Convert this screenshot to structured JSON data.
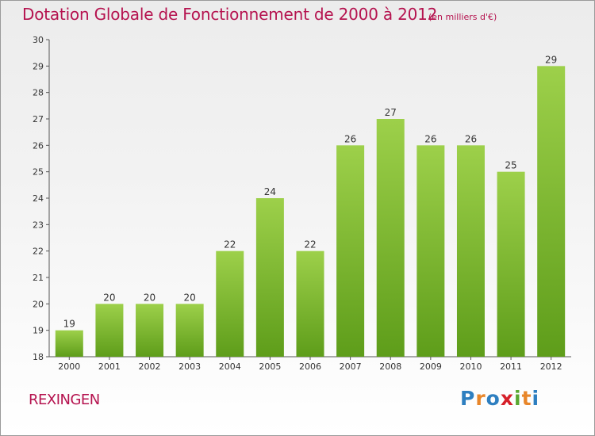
{
  "title": "Dotation Globale de Fonctionnement de 2000 à 2012",
  "subtitle": "(en milliers d'€)",
  "commune": "REXINGEN",
  "logo": {
    "letters": [
      "P",
      "r",
      "o",
      "x",
      "i",
      "t",
      "i"
    ],
    "colors": [
      "#2e7fc0",
      "#e8862a",
      "#2e7fc0",
      "#d6202a",
      "#5aa832",
      "#e8862a",
      "#2e7fc0"
    ]
  },
  "colors": {
    "title": "#b5134f",
    "bar_light": "#9dd04a",
    "bar_dark": "#5e9d1a"
  },
  "chart_data": {
    "type": "bar",
    "title": "Dotation Globale de Fonctionnement de 2000 à 2012",
    "subtitle": "(en milliers d'€)",
    "categories": [
      "2000",
      "2001",
      "2002",
      "2003",
      "2004",
      "2005",
      "2006",
      "2007",
      "2008",
      "2009",
      "2010",
      "2011",
      "2012"
    ],
    "values": [
      19,
      20,
      20,
      20,
      22,
      24,
      22,
      26,
      27,
      26,
      26,
      25,
      29
    ],
    "data_labels": [
      "19",
      "20",
      "20",
      "20",
      "22",
      "24",
      "22",
      "26",
      "27",
      "26",
      "26",
      "25",
      "29"
    ],
    "ylim": [
      18,
      30
    ],
    "yticks": [
      "18",
      "19",
      "20",
      "21",
      "22",
      "23",
      "24",
      "25",
      "26",
      "27",
      "28",
      "29",
      "30"
    ],
    "xlabel": "",
    "ylabel": "",
    "grid": false,
    "legend": false
  }
}
